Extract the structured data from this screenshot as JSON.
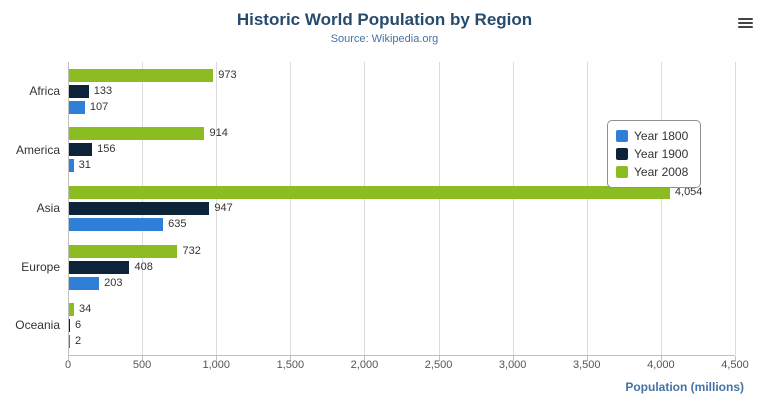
{
  "header": {
    "title": "Historic World Population by Region",
    "subtitle": "Source: Wikipedia.org"
  },
  "menu": {
    "icon": "hamburger-menu-icon"
  },
  "chart_data": {
    "type": "bar",
    "orientation": "horizontal",
    "title": "Historic World Population by Region",
    "subtitle": "Source: Wikipedia.org",
    "categories": [
      "Africa",
      "America",
      "Asia",
      "Europe",
      "Oceania"
    ],
    "series": [
      {
        "name": "Year 1800",
        "color": "#2f7ed8",
        "values": [
          107,
          31,
          635,
          203,
          2
        ]
      },
      {
        "name": "Year 1900",
        "color": "#0d233a",
        "values": [
          133,
          156,
          947,
          408,
          6
        ]
      },
      {
        "name": "Year 2008",
        "color": "#8bbc21",
        "values": [
          973,
          914,
          4054,
          732,
          34
        ]
      }
    ],
    "bar_draw_order_top_to_bottom": [
      "Year 2008",
      "Year 1900",
      "Year 1800"
    ],
    "xlabel": "Population (millions)",
    "ylabel": "",
    "xlim": [
      0,
      4500
    ],
    "x_ticks": [
      "0",
      "500",
      "1,000",
      "1,500",
      "2,000",
      "2,500",
      "3,000",
      "3,500",
      "4,000",
      "4,500"
    ],
    "grid": true,
    "value_labels": true,
    "legend_position": "right"
  }
}
